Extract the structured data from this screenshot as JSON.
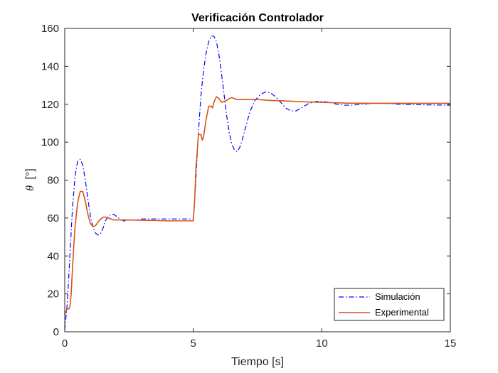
{
  "chart_data": {
    "type": "line",
    "title": "Verificación Controlador",
    "xlabel": "Tiempo [s]",
    "ylabel_symbol": "θ",
    "ylabel_unit": "[°]",
    "xlim": [
      0,
      15
    ],
    "ylim": [
      0,
      160
    ],
    "xticks": [
      0,
      5,
      10,
      15
    ],
    "yticks": [
      0,
      20,
      40,
      60,
      80,
      100,
      120,
      140,
      160
    ],
    "grid": false,
    "legend_position": "bottom-right",
    "series": [
      {
        "name": "Simulación",
        "color": "#0000ff",
        "line_style": "dash-dot",
        "x": [
          0,
          0.1,
          0.2,
          0.3,
          0.4,
          0.5,
          0.6,
          0.7,
          0.8,
          0.9,
          1.0,
          1.1,
          1.2,
          1.3,
          1.4,
          1.5,
          1.6,
          1.7,
          1.8,
          1.9,
          2.0,
          2.1,
          2.2,
          2.3,
          2.4,
          2.5,
          2.8,
          3.0,
          3.3,
          3.6,
          4.0,
          4.5,
          5.0,
          5.02,
          5.1,
          5.2,
          5.3,
          5.4,
          5.5,
          5.6,
          5.7,
          5.8,
          5.9,
          6.0,
          6.1,
          6.2,
          6.3,
          6.4,
          6.5,
          6.6,
          6.7,
          6.8,
          6.9,
          7.0,
          7.2,
          7.4,
          7.6,
          7.8,
          8.0,
          8.2,
          8.4,
          8.6,
          8.8,
          9.0,
          9.2,
          9.5,
          9.8,
          10.0,
          10.3,
          10.6,
          10.9,
          11.2,
          11.5,
          12.0,
          12.5,
          13.0,
          14.0,
          15.0
        ],
        "values": [
          1,
          15,
          40,
          65,
          82,
          90,
          91,
          88,
          80,
          70,
          61,
          55,
          52,
          51,
          52,
          55,
          59,
          61,
          62,
          62,
          61,
          60,
          59,
          58.5,
          58.5,
          59,
          59,
          59.5,
          59.5,
          59.5,
          59.5,
          59.5,
          59.5,
          62,
          80,
          105,
          125,
          138,
          147,
          153,
          156,
          156,
          153,
          146,
          136,
          125,
          114,
          105,
          99,
          96,
          95,
          97,
          101,
          106,
          116,
          122,
          125,
          126.5,
          126,
          124,
          121,
          118,
          116.5,
          116.5,
          118,
          120.5,
          121.5,
          121.5,
          121,
          120,
          119.5,
          119.5,
          120,
          120.5,
          120.5,
          120,
          119.7,
          119.5
        ]
      },
      {
        "name": "Experimental",
        "color": "#d95319",
        "line_style": "solid",
        "x": [
          0,
          0.05,
          0.1,
          0.15,
          0.2,
          0.25,
          0.3,
          0.35,
          0.4,
          0.5,
          0.6,
          0.7,
          0.8,
          0.9,
          1.0,
          1.1,
          1.2,
          1.3,
          1.4,
          1.5,
          1.6,
          1.7,
          1.8,
          1.9,
          2.0,
          2.2,
          2.5,
          3.0,
          3.5,
          4.0,
          4.5,
          5.0,
          5.05,
          5.1,
          5.2,
          5.3,
          5.35,
          5.4,
          5.5,
          5.6,
          5.7,
          5.75,
          5.8,
          5.9,
          6.0,
          6.05,
          6.1,
          6.2,
          6.3,
          6.4,
          6.5,
          6.6,
          6.7,
          6.8,
          7.0,
          7.5,
          8.0,
          8.5,
          9.0,
          9.5,
          10.0,
          10.5,
          11.0,
          12.0,
          13.0,
          14.0,
          15.0
        ],
        "values": [
          9,
          11,
          12,
          12,
          13,
          20,
          33,
          45,
          55,
          68,
          74,
          74,
          69,
          62,
          57,
          55.5,
          56,
          58,
          59.5,
          60.5,
          60.5,
          60,
          59.5,
          59,
          59,
          59,
          59,
          58.8,
          58.7,
          58.5,
          58.5,
          58.5,
          68,
          85,
          104,
          104,
          101,
          103,
          112,
          119,
          119,
          118,
          121,
          124,
          123,
          122,
          121,
          121.5,
          122,
          123,
          123.5,
          123,
          122.5,
          122.5,
          122.5,
          122.5,
          122,
          121.8,
          121.5,
          121.2,
          121,
          120.8,
          120.6,
          120.5,
          120.5,
          120.5,
          120.5
        ]
      }
    ]
  }
}
